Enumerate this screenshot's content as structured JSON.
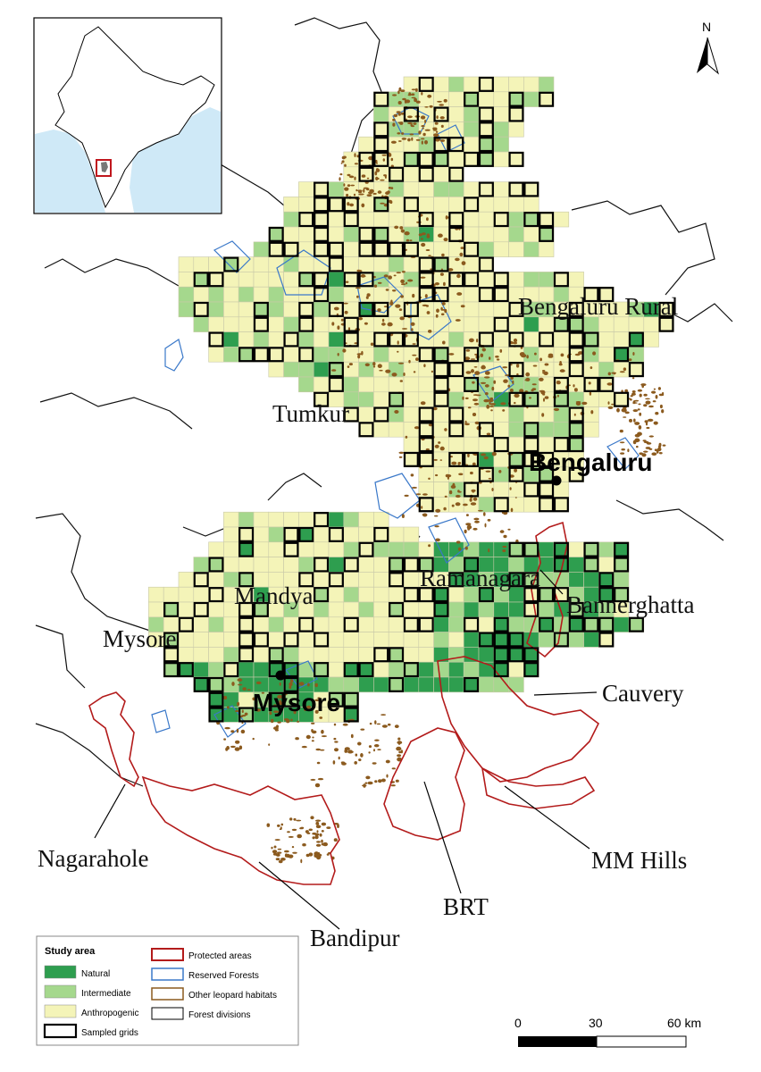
{
  "labels": {
    "bengaluru_rural": "Bengaluru Rural",
    "tumkur": "Tumkur",
    "bengaluru": "Bengaluru",
    "mandya": "Mandya",
    "ramanagara": "Ramanagara",
    "bannerghatta": "Bannerghatta",
    "mysore_district": "Mysore",
    "mysore_city": "Mysore",
    "cauvery": "Cauvery",
    "nagarahole": "Nagarahole",
    "mm_hills": "MM Hills",
    "brt": "BRT",
    "bandipur": "Bandipur"
  },
  "north_arrow": {
    "label": "N"
  },
  "scale_bar": {
    "ticks": [
      "0",
      "30",
      "60 km"
    ]
  },
  "legend": {
    "title": "Study area",
    "items_left": [
      {
        "label": "Natural",
        "color": "#2e9e4f"
      },
      {
        "label": "Intermediate",
        "color": "#a5d88d"
      },
      {
        "label": "Anthropogenic",
        "color": "#f4f4b8"
      },
      {
        "label": "Sampled grids",
        "color": "#000000"
      }
    ],
    "items_right": [
      {
        "label": "Protected areas",
        "color": "#b31b1b"
      },
      {
        "label": "Reserved Forests",
        "color": "#3a78c9"
      },
      {
        "label": "Other leopard habitats",
        "color": "#8b5a1e"
      },
      {
        "label": "Forest divisions",
        "color": "#000000"
      }
    ]
  },
  "colors": {
    "natural": "#2e9e4f",
    "intermediate": "#a5d88d",
    "anthropogenic": "#f4f4b8",
    "grid_line": "#c9c9a8",
    "protected": "#b31b1b",
    "reserved": "#3a78c9",
    "habitat": "#8b5a1e"
  }
}
